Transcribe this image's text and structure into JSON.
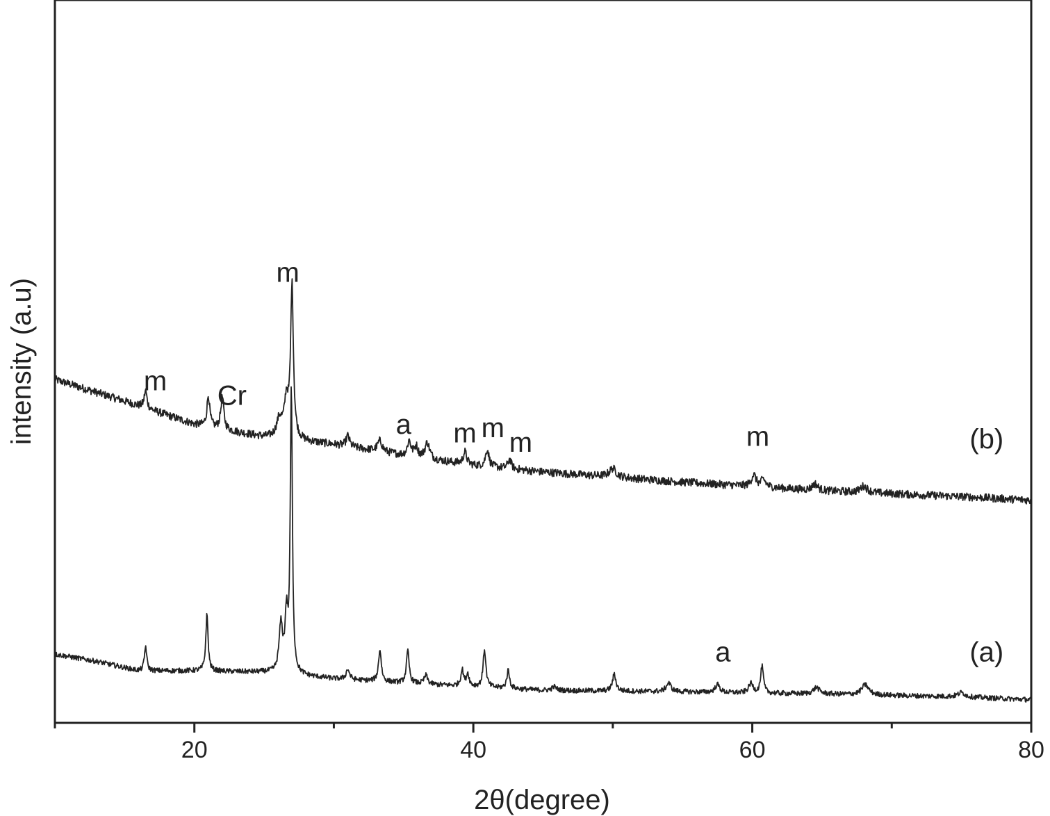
{
  "chart_data": {
    "type": "line",
    "xlabel": "2θ(degree)",
    "ylabel": "intensity (a.u)",
    "xlim": [
      10,
      80
    ],
    "ylim": [
      0,
      100
    ],
    "xticks_major": [
      20,
      40,
      60,
      80
    ],
    "xticks_minor": [
      10,
      30,
      50,
      70
    ],
    "grid": false,
    "legend": "none",
    "line_color": "#222222",
    "series": [
      {
        "name": "(b)",
        "baseline": [
          [
            10,
            47.5
          ],
          [
            15,
            44.5
          ],
          [
            20,
            41.3
          ],
          [
            25,
            39.5
          ],
          [
            30,
            38.5
          ],
          [
            35,
            37.0
          ],
          [
            40,
            35.6
          ],
          [
            45,
            34.7
          ],
          [
            50,
            34.0
          ],
          [
            55,
            33.3
          ],
          [
            60,
            32.7
          ],
          [
            65,
            32.1
          ],
          [
            70,
            31.7
          ],
          [
            75,
            31.3
          ],
          [
            80,
            30.8
          ]
        ],
        "noise": 0.55,
        "peaks": [
          {
            "x": 16.5,
            "h": 2.4,
            "w": 0.12
          },
          {
            "x": 21.0,
            "h": 4.3,
            "w": 0.12
          },
          {
            "x": 22.0,
            "h": 4.5,
            "w": 0.13
          },
          {
            "x": 26.1,
            "h": 2.5,
            "w": 0.25
          },
          {
            "x": 26.6,
            "h": 5.0,
            "w": 0.18
          },
          {
            "x": 27.0,
            "h": 21.0,
            "w": 0.12
          },
          {
            "x": 31.0,
            "h": 1.5,
            "w": 0.15
          },
          {
            "x": 33.3,
            "h": 1.5,
            "w": 0.2
          },
          {
            "x": 35.4,
            "h": 2.1,
            "w": 0.15
          },
          {
            "x": 35.9,
            "h": 1.4,
            "w": 0.15
          },
          {
            "x": 36.7,
            "h": 2.2,
            "w": 0.2
          },
          {
            "x": 39.4,
            "h": 1.7,
            "w": 0.15
          },
          {
            "x": 41.0,
            "h": 2.4,
            "w": 0.15
          },
          {
            "x": 42.6,
            "h": 1.3,
            "w": 0.15
          },
          {
            "x": 50.0,
            "h": 1.2,
            "w": 0.3
          },
          {
            "x": 60.1,
            "h": 1.6,
            "w": 0.2
          },
          {
            "x": 60.8,
            "h": 1.0,
            "w": 0.2
          },
          {
            "x": 64.5,
            "h": 0.9,
            "w": 0.25
          },
          {
            "x": 68.0,
            "h": 0.9,
            "w": 0.3
          }
        ]
      },
      {
        "name": "(a)",
        "baseline": [
          [
            10,
            9.5
          ],
          [
            13,
            8.5
          ],
          [
            16,
            7.2
          ],
          [
            20,
            7.2
          ],
          [
            25,
            7.0
          ],
          [
            30,
            6.1
          ],
          [
            35,
            5.5
          ],
          [
            40,
            5.0
          ],
          [
            45,
            4.5
          ],
          [
            50,
            4.4
          ],
          [
            55,
            4.3
          ],
          [
            60,
            4.1
          ],
          [
            65,
            4.0
          ],
          [
            70,
            3.8
          ],
          [
            75,
            3.6
          ],
          [
            80,
            3.2
          ]
        ],
        "noise": 0.35,
        "peaks": [
          {
            "x": 16.5,
            "h": 3.4,
            "w": 0.1
          },
          {
            "x": 20.9,
            "h": 7.8,
            "w": 0.1
          },
          {
            "x": 26.2,
            "h": 6.5,
            "w": 0.15
          },
          {
            "x": 26.6,
            "h": 7.5,
            "w": 0.12
          },
          {
            "x": 26.95,
            "h": 39.0,
            "w": 0.09
          },
          {
            "x": 31.0,
            "h": 1.4,
            "w": 0.15
          },
          {
            "x": 33.3,
            "h": 4.4,
            "w": 0.12
          },
          {
            "x": 35.3,
            "h": 4.4,
            "w": 0.12
          },
          {
            "x": 36.6,
            "h": 1.2,
            "w": 0.15
          },
          {
            "x": 39.2,
            "h": 2.2,
            "w": 0.12
          },
          {
            "x": 39.6,
            "h": 1.7,
            "w": 0.12
          },
          {
            "x": 40.8,
            "h": 5.2,
            "w": 0.12
          },
          {
            "x": 42.5,
            "h": 2.5,
            "w": 0.12
          },
          {
            "x": 45.8,
            "h": 0.5,
            "w": 0.2
          },
          {
            "x": 50.1,
            "h": 2.3,
            "w": 0.15
          },
          {
            "x": 54.0,
            "h": 1.2,
            "w": 0.2
          },
          {
            "x": 57.5,
            "h": 1.1,
            "w": 0.2
          },
          {
            "x": 59.9,
            "h": 1.3,
            "w": 0.2
          },
          {
            "x": 60.7,
            "h": 3.7,
            "w": 0.12
          },
          {
            "x": 64.6,
            "h": 0.9,
            "w": 0.25
          },
          {
            "x": 68.1,
            "h": 1.4,
            "w": 0.3
          },
          {
            "x": 75.0,
            "h": 0.6,
            "w": 0.3
          }
        ]
      }
    ],
    "annotations": [
      {
        "text": "m",
        "x": 17.2,
        "y": 46.0
      },
      {
        "text": "Cr",
        "x": 22.7,
        "y": 44.0
      },
      {
        "text": "m",
        "x": 26.7,
        "y": 61.0
      },
      {
        "text": "a",
        "x": 35.0,
        "y": 40.0
      },
      {
        "text": "m",
        "x": 39.4,
        "y": 38.8
      },
      {
        "text": "m",
        "x": 41.4,
        "y": 39.5
      },
      {
        "text": "m",
        "x": 43.4,
        "y": 37.5
      },
      {
        "text": "m",
        "x": 60.4,
        "y": 38.3
      },
      {
        "text": "(b)",
        "x": 76.8,
        "y": 38.0
      },
      {
        "text": "a",
        "x": 57.9,
        "y": 8.5
      },
      {
        "text": "(a)",
        "x": 76.8,
        "y": 8.5
      }
    ]
  }
}
